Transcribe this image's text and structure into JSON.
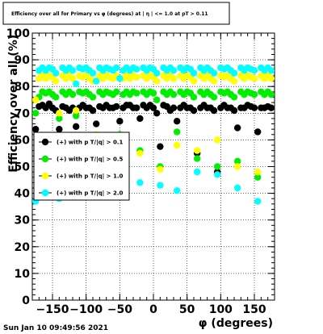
{
  "title": "Efficiency over all for Primary vs φ (degrees) at | η | <= 1.0 at pT > 0.11",
  "date_stamp": "Sun Jan 10 09:49:56 2021",
  "chart_data": {
    "type": "scatter",
    "title": "Efficiency over all for Primary vs φ (degrees) at | η | <= 1.0 at pT > 0.11",
    "xlabel": "φ (degrees)",
    "ylabel": "Efficiency over all (%)",
    "xlim": [
      -180,
      180
    ],
    "ylim": [
      0,
      100
    ],
    "x_ticks": [
      -150,
      -100,
      -50,
      0,
      50,
      100,
      150
    ],
    "y_ticks": [
      0,
      10,
      20,
      30,
      40,
      50,
      60,
      70,
      80,
      90,
      100
    ],
    "grid": true,
    "legend_position": "middle-left",
    "series": [
      {
        "name": "(+) with p T/|q| > 0.1",
        "color": "#000000",
        "x": [
          -175,
          -170,
          -165,
          -160,
          -155,
          -150,
          -145,
          -140,
          -135,
          -130,
          -125,
          -120,
          -115,
          -110,
          -105,
          -100,
          -95,
          -90,
          -85,
          -80,
          -75,
          -70,
          -65,
          -60,
          -55,
          -50,
          -45,
          -40,
          -35,
          -30,
          -25,
          -20,
          -15,
          -10,
          -5,
          0,
          5,
          10,
          15,
          20,
          25,
          30,
          35,
          40,
          45,
          50,
          55,
          60,
          65,
          70,
          75,
          80,
          85,
          90,
          95,
          100,
          105,
          110,
          115,
          120,
          125,
          130,
          135,
          140,
          145,
          150,
          155,
          160,
          165,
          170,
          175
        ],
        "y": [
          64,
          72.5,
          73,
          72,
          73.5,
          72,
          71,
          64,
          72.5,
          72,
          71,
          72,
          65,
          72,
          73,
          72,
          72,
          71,
          66,
          72.5,
          72,
          73,
          72,
          72,
          72.5,
          67,
          72,
          73,
          73,
          72,
          72,
          68,
          73,
          72,
          73,
          72,
          70,
          57.5,
          73,
          72.5,
          71,
          72,
          67,
          72,
          73,
          72,
          72,
          71,
          55,
          72,
          73,
          72,
          72,
          71,
          48,
          72,
          73,
          72,
          72,
          71,
          64.5,
          72,
          72,
          73,
          72.5,
          72,
          63,
          72,
          72,
          72.5,
          72
        ]
      },
      {
        "name": "(+) with p T/|q| > 0.5",
        "color": "#00ee00",
        "x": [
          -175,
          -170,
          -165,
          -160,
          -155,
          -150,
          -145,
          -140,
          -135,
          -130,
          -125,
          -120,
          -115,
          -110,
          -105,
          -100,
          -95,
          -90,
          -85,
          -80,
          -75,
          -70,
          -65,
          -60,
          -55,
          -50,
          -45,
          -40,
          -35,
          -30,
          -25,
          -20,
          -15,
          -10,
          -5,
          0,
          5,
          10,
          15,
          20,
          25,
          30,
          35,
          40,
          45,
          50,
          55,
          60,
          65,
          70,
          75,
          80,
          85,
          90,
          95,
          100,
          105,
          110,
          115,
          120,
          125,
          130,
          135,
          140,
          145,
          150,
          155,
          160,
          165,
          170,
          175
        ],
        "y": [
          70,
          76,
          78,
          77.5,
          78,
          77,
          76,
          68,
          78,
          77,
          78,
          77,
          69,
          78,
          77.5,
          78,
          77,
          76,
          61,
          78,
          77,
          78,
          77.5,
          77,
          78,
          62,
          77,
          78,
          77,
          78,
          77.5,
          56,
          78,
          77,
          78,
          77.5,
          75,
          50,
          78,
          77,
          78,
          77,
          63,
          78,
          77,
          78,
          77.5,
          76,
          53,
          78,
          77,
          78,
          77,
          76,
          50,
          78,
          77.5,
          78,
          77,
          76,
          52,
          78,
          77,
          78,
          77.5,
          77,
          46,
          78,
          77,
          78,
          77
        ]
      },
      {
        "name": "(+) with p T/|q| > 1.0",
        "color": "#ffff00",
        "x": [
          -175,
          -170,
          -165,
          -160,
          -155,
          -150,
          -145,
          -140,
          -135,
          -130,
          -125,
          -120,
          -115,
          -110,
          -105,
          -100,
          -95,
          -90,
          -85,
          -80,
          -75,
          -70,
          -65,
          -60,
          -55,
          -50,
          -45,
          -40,
          -35,
          -30,
          -25,
          -20,
          -15,
          -10,
          -5,
          0,
          5,
          10,
          15,
          20,
          25,
          30,
          35,
          40,
          45,
          50,
          55,
          60,
          65,
          70,
          75,
          80,
          85,
          90,
          95,
          100,
          105,
          110,
          115,
          120,
          125,
          130,
          135,
          140,
          145,
          150,
          155,
          160,
          165,
          170,
          175
        ],
        "y": [
          75,
          83,
          84,
          83,
          84,
          83.5,
          82,
          70,
          84,
          83,
          84,
          83,
          71,
          84,
          83.5,
          84,
          83,
          82,
          62,
          84,
          83,
          84,
          83.5,
          83,
          84,
          60,
          83,
          84,
          83,
          84,
          83.5,
          55,
          84,
          83,
          84,
          83.5,
          82,
          49,
          84,
          83,
          84,
          83,
          58,
          84,
          83,
          84,
          83.5,
          82,
          56,
          84,
          83,
          84,
          83,
          82,
          60,
          84,
          83.5,
          84,
          83,
          82,
          50,
          84,
          83,
          84,
          83.5,
          83,
          48,
          84,
          83,
          84,
          83
        ]
      },
      {
        "name": "(+) with p T/|q| > 2.0",
        "color": "#00ffff",
        "x": [
          -175,
          -170,
          -165,
          -160,
          -155,
          -150,
          -145,
          -140,
          -135,
          -130,
          -125,
          -120,
          -115,
          -110,
          -105,
          -100,
          -95,
          -90,
          -85,
          -80,
          -75,
          -70,
          -65,
          -60,
          -55,
          -50,
          -45,
          -40,
          -35,
          -30,
          -25,
          -20,
          -15,
          -10,
          -5,
          0,
          5,
          10,
          15,
          20,
          25,
          30,
          35,
          40,
          45,
          50,
          55,
          60,
          65,
          70,
          75,
          80,
          85,
          90,
          95,
          100,
          105,
          110,
          115,
          120,
          125,
          130,
          135,
          140,
          145,
          150,
          155,
          160,
          165,
          170,
          175
        ],
        "y": [
          37,
          86,
          87,
          86,
          87,
          86.5,
          85,
          38,
          87,
          86,
          87,
          86,
          81,
          87,
          86.5,
          87,
          86,
          85,
          82,
          87,
          86,
          87,
          86.5,
          86,
          87,
          83,
          86,
          87,
          86,
          87,
          86.5,
          44,
          87,
          86,
          87,
          86.5,
          85,
          43,
          87,
          86,
          87,
          86,
          41,
          87,
          86,
          87,
          86.5,
          85,
          48,
          87,
          86,
          87,
          86,
          85,
          47,
          87,
          86.5,
          87,
          86,
          85,
          42,
          87,
          86,
          87,
          86.5,
          86,
          37,
          87,
          86,
          87,
          86
        ]
      }
    ]
  }
}
